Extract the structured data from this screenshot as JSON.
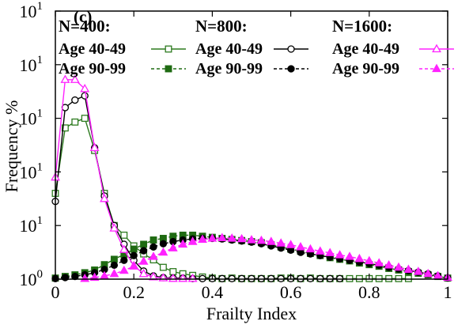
{
  "chart_data": {
    "type": "line",
    "panel_label": "(c)",
    "title": "",
    "xlabel": "Frailty Index",
    "ylabel": "Frequency %",
    "xlim": [
      0,
      1
    ],
    "ylim": [
      0,
      5
    ],
    "x_ticks": [
      0,
      0.2,
      0.4,
      0.6,
      0.8,
      1
    ],
    "x_tick_labels": [
      "0",
      "0.2",
      "0.4",
      "0.6",
      "0.8",
      "1"
    ],
    "y_ticks": [
      0,
      1,
      2,
      3,
      4,
      5
    ],
    "y_tick_base": "10",
    "y_tick_exponents": [
      "0",
      "1",
      "1",
      "1",
      "1",
      "1"
    ],
    "grid": false,
    "legend": {
      "groups": [
        {
          "heading": "N=400:",
          "entries": [
            "Age 40-49",
            "Age 90-99"
          ]
        },
        {
          "heading": "N=800:",
          "entries": [
            "Age 40-49",
            "Age 90-99"
          ]
        },
        {
          "heading": "N=1600:",
          "entries": [
            "Age 40-49",
            "Age 90-99"
          ]
        }
      ]
    },
    "series": [
      {
        "group": 0,
        "entry": 0,
        "color": "#2d7a1f",
        "marker": "square-open",
        "dashed": false,
        "x": [
          0,
          0.025,
          0.05,
          0.075,
          0.1,
          0.125,
          0.15,
          0.175,
          0.2,
          0.225,
          0.25,
          0.275,
          0.3,
          0.325,
          0.35,
          0.375,
          0.4,
          0.425,
          0.45,
          0.475,
          0.5,
          0.525,
          0.55,
          0.575,
          0.6,
          0.625,
          0.65,
          0.675,
          0.7,
          0.725,
          0.75,
          0.775,
          0.8,
          0.825,
          0.85,
          0.875,
          0.9
        ],
        "y": [
          1.6,
          2.82,
          2.93,
          3.0,
          2.4,
          1.6,
          1.0,
          0.82,
          0.62,
          0.47,
          0.36,
          0.22,
          0.14,
          0.1,
          0.07,
          0.04,
          0.02,
          0.01,
          0.02,
          0.01,
          0.01,
          0.01,
          0.01,
          0.02,
          0.02,
          0.01,
          0.02,
          0.01,
          0.01,
          0.01,
          0.01,
          0.01,
          0.01,
          0.01,
          0.01,
          0.01,
          0.01
        ]
      },
      {
        "group": 0,
        "entry": 1,
        "color": "#1f6b12",
        "marker": "square-filled",
        "dashed": true,
        "x": [
          0,
          0.025,
          0.05,
          0.075,
          0.1,
          0.125,
          0.15,
          0.175,
          0.2,
          0.225,
          0.25,
          0.275,
          0.3,
          0.325,
          0.35,
          0.375,
          0.4,
          0.425,
          0.45,
          0.475,
          0.5,
          0.525,
          0.55,
          0.575,
          0.6,
          0.625,
          0.65,
          0.675,
          0.7,
          0.725,
          0.75,
          0.775,
          0.8,
          0.825,
          0.85,
          0.875,
          0.9,
          0.925,
          0.95,
          0.975,
          1.0
        ],
        "y": [
          0.02,
          0.05,
          0.08,
          0.12,
          0.17,
          0.27,
          0.37,
          0.46,
          0.56,
          0.65,
          0.73,
          0.76,
          0.8,
          0.82,
          0.82,
          0.8,
          0.78,
          0.76,
          0.74,
          0.72,
          0.7,
          0.68,
          0.64,
          0.6,
          0.56,
          0.52,
          0.48,
          0.44,
          0.4,
          0.37,
          0.34,
          0.3,
          0.27,
          0.24,
          0.2,
          0.17,
          0.14,
          0.11,
          0.08,
          0.05,
          0.02
        ]
      },
      {
        "group": 1,
        "entry": 0,
        "color": "#000000",
        "marker": "circle-open",
        "dashed": false,
        "x": [
          0,
          0.025,
          0.05,
          0.075,
          0.1,
          0.125,
          0.15,
          0.175,
          0.2,
          0.225,
          0.25,
          0.275,
          0.3,
          0.325,
          0.35,
          0.375,
          0.4,
          0.425,
          0.45,
          0.475,
          0.5,
          0.525,
          0.55,
          0.575,
          0.6,
          0.625,
          0.65,
          0.675,
          0.7,
          0.725
        ],
        "y": [
          1.45,
          3.2,
          3.34,
          3.42,
          2.45,
          1.55,
          1.0,
          0.65,
          0.35,
          0.15,
          0.06,
          0.03,
          0.02,
          0.02,
          0.01,
          0.01,
          0.01,
          0.01,
          0.01,
          0.01,
          0.01,
          0.01,
          0.01,
          0.01,
          0.01,
          0.01,
          0.01,
          0.01,
          0.01,
          0.01
        ]
      },
      {
        "group": 1,
        "entry": 1,
        "color": "#000000",
        "marker": "circle-filled",
        "dashed": true,
        "x": [
          0,
          0.025,
          0.05,
          0.075,
          0.1,
          0.125,
          0.15,
          0.175,
          0.2,
          0.225,
          0.25,
          0.275,
          0.3,
          0.325,
          0.35,
          0.375,
          0.4,
          0.425,
          0.45,
          0.475,
          0.5,
          0.525,
          0.55,
          0.575,
          0.6,
          0.625,
          0.65,
          0.675,
          0.7,
          0.725,
          0.75,
          0.775,
          0.8,
          0.825,
          0.85,
          0.875,
          0.9,
          0.925,
          0.95,
          0.975,
          1.0
        ],
        "y": [
          0.01,
          0.03,
          0.05,
          0.08,
          0.12,
          0.18,
          0.26,
          0.35,
          0.44,
          0.53,
          0.6,
          0.66,
          0.7,
          0.73,
          0.75,
          0.76,
          0.76,
          0.75,
          0.73,
          0.71,
          0.69,
          0.66,
          0.62,
          0.58,
          0.54,
          0.5,
          0.47,
          0.44,
          0.41,
          0.38,
          0.35,
          0.32,
          0.29,
          0.26,
          0.22,
          0.19,
          0.16,
          0.13,
          0.1,
          0.06,
          0.02
        ]
      },
      {
        "group": 2,
        "entry": 0,
        "color": "#ff22ff",
        "marker": "triangle-open",
        "dashed": false,
        "x": [
          0,
          0.025,
          0.05,
          0.075,
          0.1,
          0.125,
          0.15,
          0.175,
          0.2,
          0.225,
          0.25,
          0.275,
          0.3,
          0.325,
          0.35
        ],
        "y": [
          1.9,
          3.72,
          3.72,
          3.55,
          2.45,
          1.5,
          0.95,
          0.55,
          0.25,
          0.1,
          0.04,
          0.02,
          0.01,
          0.01,
          0.01
        ]
      },
      {
        "group": 2,
        "entry": 1,
        "color": "#ff22ff",
        "marker": "triangle-filled",
        "dashed": true,
        "x": [
          0.075,
          0.1,
          0.125,
          0.15,
          0.175,
          0.2,
          0.225,
          0.25,
          0.275,
          0.3,
          0.325,
          0.35,
          0.375,
          0.4,
          0.425,
          0.45,
          0.475,
          0.5,
          0.525,
          0.55,
          0.575,
          0.6,
          0.625,
          0.65,
          0.675,
          0.7,
          0.725,
          0.75,
          0.775,
          0.8,
          0.825,
          0.85,
          0.875,
          0.9,
          0.925,
          0.95,
          0.975,
          1.0
        ],
        "y": [
          0.01,
          0.03,
          0.06,
          0.1,
          0.16,
          0.24,
          0.33,
          0.42,
          0.5,
          0.58,
          0.65,
          0.7,
          0.74,
          0.76,
          0.77,
          0.76,
          0.75,
          0.73,
          0.72,
          0.7,
          0.67,
          0.64,
          0.6,
          0.56,
          0.52,
          0.49,
          0.45,
          0.42,
          0.38,
          0.34,
          0.3,
          0.26,
          0.22,
          0.18,
          0.14,
          0.1,
          0.06,
          0.03
        ]
      }
    ]
  }
}
